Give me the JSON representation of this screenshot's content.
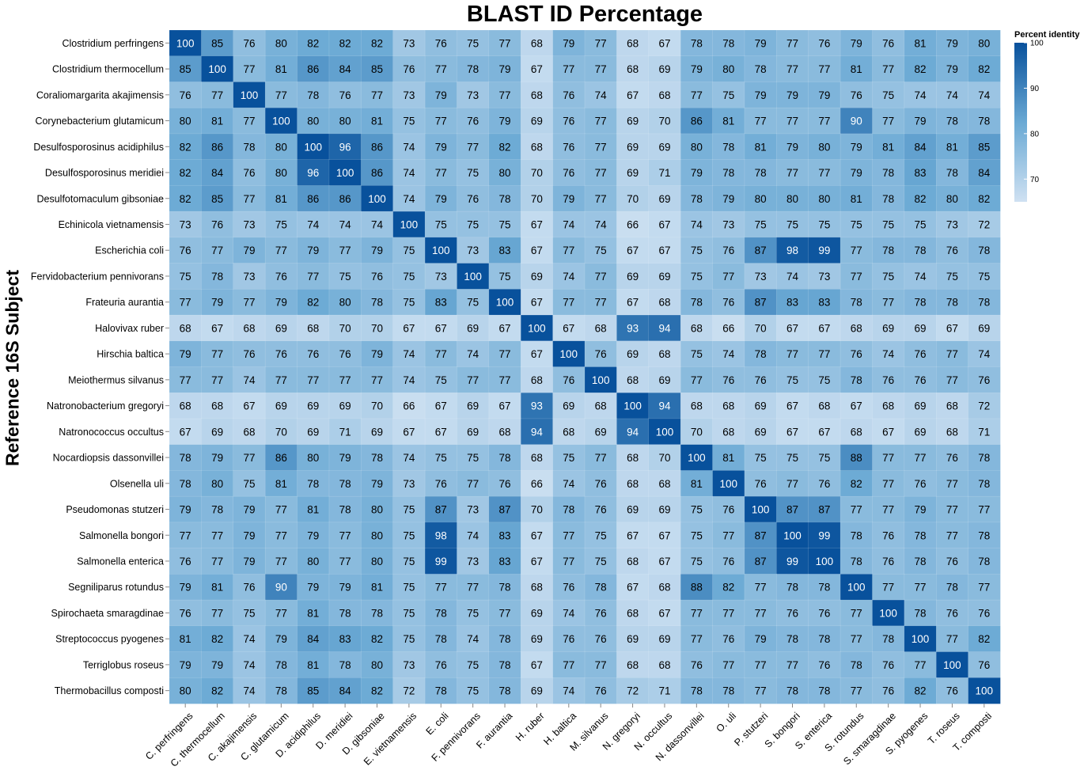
{
  "chart_data": {
    "type": "heatmap",
    "title": "BLAST ID Percentage",
    "ylabel": "Reference 16S Subject",
    "xlabel": "",
    "legend": {
      "title": "Percent identity",
      "placement": "top-right",
      "ticks": [
        100,
        90,
        80,
        70
      ],
      "range": [
        65,
        100
      ]
    },
    "colors": {
      "low": "#cfe1f2",
      "high": "#08519c"
    },
    "rows": [
      "Clostridium perfringens",
      "Clostridium thermocellum",
      "Coraliomargarita akajimensis",
      "Corynebacterium glutamicum",
      "Desulfosporosinus acidiphilus",
      "Desulfosporosinus meridiei",
      "Desulfotomaculum gibsoniae",
      "Echinicola vietnamensis",
      "Escherichia coli",
      "Fervidobacterium pennivorans",
      "Frateuria aurantia",
      "Halovivax ruber",
      "Hirschia baltica",
      "Meiothermus silvanus",
      "Natronobacterium gregoryi",
      "Natronococcus occultus",
      "Nocardiopsis dassonvillei",
      "Olsenella uli",
      "Pseudomonas stutzeri",
      "Salmonella bongori",
      "Salmonella enterica",
      "Segniliparus rotundus",
      "Spirochaeta smaragdinae",
      "Streptococcus pyogenes",
      "Terriglobus roseus",
      "Thermobacillus composti"
    ],
    "columns": [
      "C. perfringens",
      "C. thermocellum",
      "C. akajimensis",
      "C. glutamicum",
      "D. acidiphilus",
      "D. meridiei",
      "D. gibsoniae",
      "E. vietnamensis",
      "E. coli",
      "F. pennivorans",
      "F. aurantia",
      "H. ruber",
      "H. baltica",
      "M. silvanus",
      "N. gregoryi",
      "N. occultus",
      "N. dassonvillei",
      "O. uli",
      "P. stutzeri",
      "S. bongori",
      "S. enterica",
      "S. rotundus",
      "S. smaragdinae",
      "S. pyogenes",
      "T. roseus",
      "T. composti"
    ],
    "values": [
      [
        100,
        85,
        76,
        80,
        82,
        82,
        82,
        73,
        76,
        75,
        77,
        68,
        79,
        77,
        68,
        67,
        78,
        78,
        79,
        77,
        76,
        79,
        76,
        81,
        79,
        80
      ],
      [
        85,
        100,
        77,
        81,
        86,
        84,
        85,
        76,
        77,
        78,
        79,
        67,
        77,
        77,
        68,
        69,
        79,
        80,
        78,
        77,
        77,
        81,
        77,
        82,
        79,
        82
      ],
      [
        76,
        77,
        100,
        77,
        78,
        76,
        77,
        73,
        79,
        73,
        77,
        68,
        76,
        74,
        67,
        68,
        77,
        75,
        79,
        79,
        79,
        76,
        75,
        74,
        74,
        74
      ],
      [
        80,
        81,
        77,
        100,
        80,
        80,
        81,
        75,
        77,
        76,
        79,
        69,
        76,
        77,
        69,
        70,
        86,
        81,
        77,
        77,
        77,
        90,
        77,
        79,
        78,
        78
      ],
      [
        82,
        86,
        78,
        80,
        100,
        96,
        86,
        74,
        79,
        77,
        82,
        68,
        76,
        77,
        69,
        69,
        80,
        78,
        81,
        79,
        80,
        79,
        81,
        84,
        81,
        85
      ],
      [
        82,
        84,
        76,
        80,
        96,
        100,
        86,
        74,
        77,
        75,
        80,
        70,
        76,
        77,
        69,
        71,
        79,
        78,
        78,
        77,
        77,
        79,
        78,
        83,
        78,
        84
      ],
      [
        82,
        85,
        77,
        81,
        86,
        86,
        100,
        74,
        79,
        76,
        78,
        70,
        79,
        77,
        70,
        69,
        78,
        79,
        80,
        80,
        80,
        81,
        78,
        82,
        80,
        82
      ],
      [
        73,
        76,
        73,
        75,
        74,
        74,
        74,
        100,
        75,
        75,
        75,
        67,
        74,
        74,
        66,
        67,
        74,
        73,
        75,
        75,
        75,
        75,
        75,
        75,
        73,
        72
      ],
      [
        76,
        77,
        79,
        77,
        79,
        77,
        79,
        75,
        100,
        73,
        83,
        67,
        77,
        75,
        67,
        67,
        75,
        76,
        87,
        98,
        99,
        77,
        78,
        78,
        76,
        78
      ],
      [
        75,
        78,
        73,
        76,
        77,
        75,
        76,
        75,
        73,
        100,
        75,
        69,
        74,
        77,
        69,
        69,
        75,
        77,
        73,
        74,
        73,
        77,
        75,
        74,
        75,
        75
      ],
      [
        77,
        79,
        77,
        79,
        82,
        80,
        78,
        75,
        83,
        75,
        100,
        67,
        77,
        77,
        67,
        68,
        78,
        76,
        87,
        83,
        83,
        78,
        77,
        78,
        78,
        78
      ],
      [
        68,
        67,
        68,
        69,
        68,
        70,
        70,
        67,
        67,
        69,
        67,
        100,
        67,
        68,
        93,
        94,
        68,
        66,
        70,
        67,
        67,
        68,
        69,
        69,
        67,
        69
      ],
      [
        79,
        77,
        76,
        76,
        76,
        76,
        79,
        74,
        77,
        74,
        77,
        67,
        100,
        76,
        69,
        68,
        75,
        74,
        78,
        77,
        77,
        76,
        74,
        76,
        77,
        74
      ],
      [
        77,
        77,
        74,
        77,
        77,
        77,
        77,
        74,
        75,
        77,
        77,
        68,
        76,
        100,
        68,
        69,
        77,
        76,
        76,
        75,
        75,
        78,
        76,
        76,
        77,
        76
      ],
      [
        68,
        68,
        67,
        69,
        69,
        69,
        70,
        66,
        67,
        69,
        67,
        93,
        69,
        68,
        100,
        94,
        68,
        68,
        69,
        67,
        68,
        67,
        68,
        69,
        68,
        72
      ],
      [
        67,
        69,
        68,
        70,
        69,
        71,
        69,
        67,
        67,
        69,
        68,
        94,
        68,
        69,
        94,
        100,
        70,
        68,
        69,
        67,
        67,
        68,
        67,
        69,
        68,
        71
      ],
      [
        78,
        79,
        77,
        86,
        80,
        79,
        78,
        74,
        75,
        75,
        78,
        68,
        75,
        77,
        68,
        70,
        100,
        81,
        75,
        75,
        75,
        88,
        77,
        77,
        76,
        78
      ],
      [
        78,
        80,
        75,
        81,
        78,
        78,
        79,
        73,
        76,
        77,
        76,
        66,
        74,
        76,
        68,
        68,
        81,
        100,
        76,
        77,
        76,
        82,
        77,
        76,
        77,
        78
      ],
      [
        79,
        78,
        79,
        77,
        81,
        78,
        80,
        75,
        87,
        73,
        87,
        70,
        78,
        76,
        69,
        69,
        75,
        76,
        100,
        87,
        87,
        77,
        77,
        79,
        77,
        77
      ],
      [
        77,
        77,
        79,
        77,
        79,
        77,
        80,
        75,
        98,
        74,
        83,
        67,
        77,
        75,
        67,
        67,
        75,
        77,
        87,
        100,
        99,
        78,
        76,
        78,
        77,
        78
      ],
      [
        76,
        77,
        79,
        77,
        80,
        77,
        80,
        75,
        99,
        73,
        83,
        67,
        77,
        75,
        68,
        67,
        75,
        76,
        87,
        99,
        100,
        78,
        76,
        78,
        76,
        78
      ],
      [
        79,
        81,
        76,
        90,
        79,
        79,
        81,
        75,
        77,
        77,
        78,
        68,
        76,
        78,
        67,
        68,
        88,
        82,
        77,
        78,
        78,
        100,
        77,
        77,
        78,
        77
      ],
      [
        76,
        77,
        75,
        77,
        81,
        78,
        78,
        75,
        78,
        75,
        77,
        69,
        74,
        76,
        68,
        67,
        77,
        77,
        77,
        76,
        76,
        77,
        100,
        78,
        76,
        76
      ],
      [
        81,
        82,
        74,
        79,
        84,
        83,
        82,
        75,
        78,
        74,
        78,
        69,
        76,
        76,
        69,
        69,
        77,
        76,
        79,
        78,
        78,
        77,
        78,
        100,
        77,
        82
      ],
      [
        79,
        79,
        74,
        78,
        81,
        78,
        80,
        73,
        76,
        75,
        78,
        67,
        77,
        77,
        68,
        68,
        76,
        77,
        77,
        77,
        76,
        78,
        76,
        77,
        100,
        76
      ],
      [
        80,
        82,
        74,
        78,
        85,
        84,
        82,
        72,
        78,
        75,
        78,
        69,
        74,
        76,
        72,
        71,
        78,
        78,
        77,
        78,
        78,
        77,
        76,
        82,
        76,
        100
      ]
    ]
  }
}
